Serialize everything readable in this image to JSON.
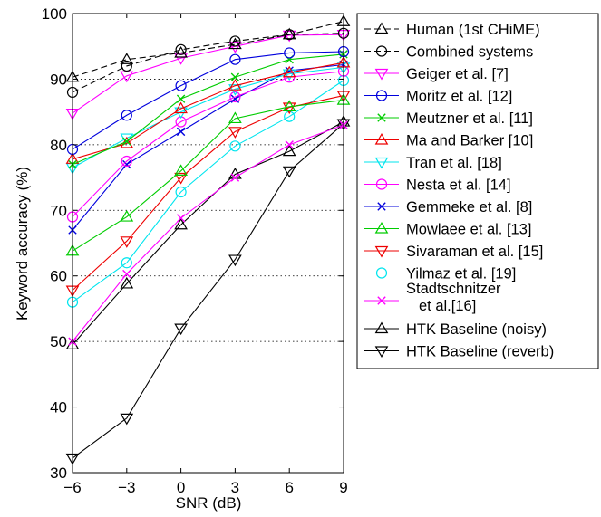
{
  "chart_data": {
    "type": "line",
    "xlabel": "SNR (dB)",
    "ylabel": "Keyword accuracy (%)",
    "xlim": [
      -6,
      9
    ],
    "ylim": [
      30,
      100
    ],
    "x": [
      -6,
      -3,
      0,
      3,
      6,
      9
    ],
    "x_tick_labels": [
      "−6",
      "−3",
      "0",
      "3",
      "6",
      "9"
    ],
    "y_ticks": [
      30,
      40,
      50,
      60,
      70,
      80,
      90,
      100
    ],
    "y_tick_labels": [
      "30",
      "40",
      "50",
      "60",
      "70",
      "80",
      "90",
      "100"
    ],
    "grid": "horizontal dotted",
    "legend_position": "outside-right",
    "series": [
      {
        "name": "Human (1st CHiME)",
        "color": "#000000",
        "dash": true,
        "marker": "triangle-up",
        "values": [
          90.3,
          93.0,
          94.0,
          95.3,
          96.8,
          98.8
        ]
      },
      {
        "name": "Combined systems",
        "color": "#000000",
        "dash": true,
        "marker": "circle",
        "values": [
          88.0,
          92.0,
          94.5,
          95.8,
          96.8,
          97.0
        ]
      },
      {
        "name": "Geiger et al. [7]",
        "color": "#ff00ff",
        "marker": "triangle-down",
        "values": [
          84.8,
          90.5,
          93.2,
          95.0,
          96.7,
          96.8
        ]
      },
      {
        "name": "Moritz et al. [12]",
        "color": "#0000dd",
        "marker": "circle",
        "values": [
          79.3,
          84.5,
          89.0,
          93.0,
          94.0,
          94.2
        ]
      },
      {
        "name": "Meutzner et al. [11]",
        "color": "#00cc00",
        "marker": "x",
        "values": [
          77.0,
          80.5,
          87.0,
          90.3,
          93.0,
          93.8
        ]
      },
      {
        "name": "Ma and Barker [10]",
        "color": "#ee0000",
        "marker": "triangle-up",
        "values": [
          77.8,
          80.2,
          85.5,
          89.0,
          91.0,
          92.5
        ]
      },
      {
        "name": "Tran et al. [18]",
        "color": "#00e5ee",
        "marker": "triangle-down",
        "values": [
          76.5,
          81.0,
          85.0,
          88.5,
          90.8,
          91.8
        ]
      },
      {
        "name": "Nesta et al. [14]",
        "color": "#ff00ff",
        "marker": "circle",
        "values": [
          69.0,
          77.5,
          83.5,
          87.3,
          90.3,
          91.2
        ]
      },
      {
        "name": "Gemmeke et al. [8]",
        "color": "#0000dd",
        "marker": "x",
        "values": [
          67.0,
          77.0,
          82.0,
          87.0,
          91.3,
          92.2
        ]
      },
      {
        "name": "Mowlaee et al. [13]",
        "color": "#00cc00",
        "marker": "triangle-up",
        "values": [
          63.8,
          69.0,
          76.0,
          84.0,
          85.8,
          86.8
        ]
      },
      {
        "name": "Sivaraman et al. [15]",
        "color": "#ee0000",
        "marker": "triangle-down",
        "values": [
          57.8,
          65.3,
          75.0,
          82.0,
          85.7,
          87.5
        ]
      },
      {
        "name": "Yilmaz et al. [19]",
        "color": "#00e5ee",
        "marker": "circle",
        "values": [
          56.0,
          62.0,
          72.8,
          79.8,
          84.3,
          89.8
        ]
      },
      {
        "name": "Stadtschnitzer et al.[16]",
        "legend_lines": [
          "Stadtschnitzer",
          "et al.[16]"
        ],
        "color": "#ff00ff",
        "marker": "x",
        "values": [
          50.0,
          60.3,
          68.8,
          75.0,
          80.0,
          83.0
        ]
      },
      {
        "name": "HTK Baseline (noisy)",
        "color": "#000000",
        "marker": "triangle-up",
        "values": [
          49.5,
          58.8,
          67.8,
          75.5,
          79.0,
          83.5
        ]
      },
      {
        "name": "HTK Baseline (reverb)",
        "color": "#000000",
        "marker": "triangle-down",
        "values": [
          32.2,
          38.3,
          52.0,
          62.5,
          76.0,
          83.2
        ]
      }
    ]
  }
}
